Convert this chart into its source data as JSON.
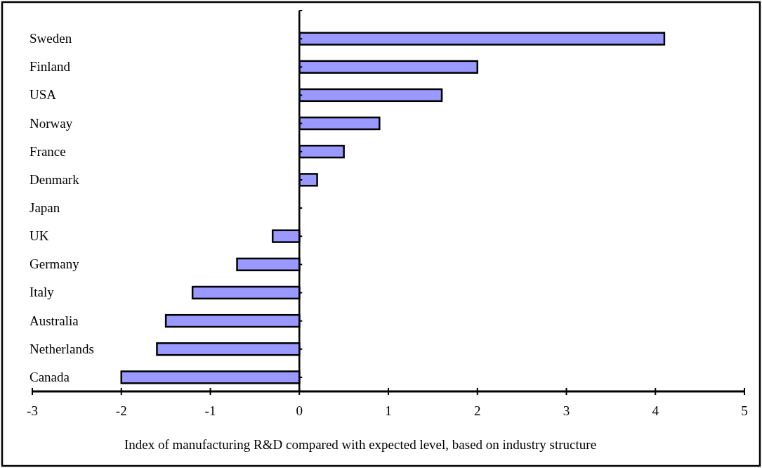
{
  "chart_data": {
    "type": "bar",
    "orientation": "horizontal",
    "xlabel": "Index of manufacturing R&D compared with expected level, based on industry structure",
    "categories": [
      "Sweden",
      "Finland",
      "USA",
      "Norway",
      "France",
      "Denmark",
      "Japan",
      "UK",
      "Germany",
      "Italy",
      "Australia",
      "Netherlands",
      "Canada"
    ],
    "values": [
      4.1,
      2.0,
      1.6,
      0.9,
      0.5,
      0.2,
      0,
      -0.3,
      -0.7,
      -1.2,
      -1.5,
      -1.6,
      -2.0
    ],
    "color": "#9999ff",
    "xlim": [
      -3,
      5
    ],
    "xticks": [
      -3,
      -2,
      -1,
      0,
      1,
      2,
      3,
      4,
      5
    ]
  }
}
